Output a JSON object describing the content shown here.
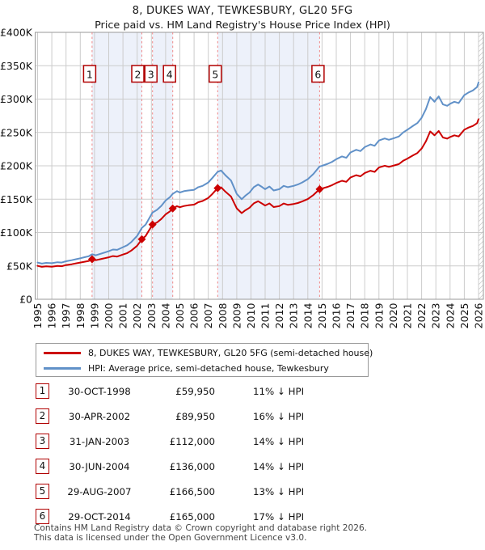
{
  "ui": {
    "title": "8, DUKES WAY, TEWKESBURY, GL20 5FG",
    "subtitle": "Price paid vs. HM Land Registry's House Price Index (HPI)",
    "legend": [
      {
        "label": "8, DUKES WAY, TEWKESBURY, GL20 5FG (semi-detached house)",
        "color": "#cc0000"
      },
      {
        "label": "HPI: Average price, semi-detached house, Tewkesbury",
        "color": "#6191c8"
      }
    ],
    "footer_line1": "Contains HM Land Registry data © Crown copyright and database right 2026.",
    "footer_line2": "This data is licensed under the Open Government Licence v3.0."
  },
  "transactions": [
    {
      "n": "1",
      "date": "30-OCT-1998",
      "price": "£59,950",
      "hpi_diff": "11% ↓ HPI",
      "year": 1998.83,
      "price_k": 59.95
    },
    {
      "n": "2",
      "date": "30-APR-2002",
      "price": "£89,950",
      "hpi_diff": "16% ↓ HPI",
      "year": 2002.33,
      "price_k": 89.95
    },
    {
      "n": "3",
      "date": "31-JAN-2003",
      "price": "£112,000",
      "hpi_diff": "14% ↓ HPI",
      "year": 2003.08,
      "price_k": 112
    },
    {
      "n": "4",
      "date": "30-JUN-2004",
      "price": "£136,000",
      "hpi_diff": "14% ↓ HPI",
      "year": 2004.5,
      "price_k": 136
    },
    {
      "n": "5",
      "date": "29-AUG-2007",
      "price": "£166,500",
      "hpi_diff": "13% ↓ HPI",
      "year": 2007.66,
      "price_k": 166.5
    },
    {
      "n": "6",
      "date": "29-OCT-2014",
      "price": "£165,000",
      "hpi_diff": "17% ↓ HPI",
      "year": 2014.83,
      "price_k": 165
    }
  ],
  "chart_data": {
    "type": "line",
    "title": "8, DUKES WAY, TEWKESBURY, GL20 5FG",
    "subtitle": "Price paid vs. HM Land Registry's House Price Index (HPI)",
    "xlabel": "",
    "ylabel": "",
    "x_range": [
      1995,
      2026
    ],
    "y_range_k": [
      0,
      400
    ],
    "y_tick_labels": [
      "£0",
      "£50K",
      "£100K",
      "£150K",
      "£200K",
      "£250K",
      "£300K",
      "£350K",
      "£400K"
    ],
    "x_ticks": [
      "1995",
      "1996",
      "1997",
      "1998",
      "1999",
      "2000",
      "2001",
      "2002",
      "2003",
      "2004",
      "2005",
      "2006",
      "2007",
      "2008",
      "2009",
      "2010",
      "2011",
      "2012",
      "2013",
      "2014",
      "2015",
      "2016",
      "2017",
      "2018",
      "2019",
      "2020",
      "2021",
      "2022",
      "2023",
      "2024",
      "2025",
      "2026"
    ],
    "grid": true,
    "legend_position": "below",
    "shaded_bands": [
      [
        1998.83,
        2002.33
      ],
      [
        2003.08,
        2004.5
      ],
      [
        2007.66,
        2014.83
      ]
    ],
    "colors": {
      "price_paid": "#cc0000",
      "hpi": "#6191c8",
      "band": "#edf1fa",
      "grid": "#cccccc",
      "border": "#999999",
      "sale_line": "#f08888",
      "badge_border": "#b00000"
    },
    "series": [
      {
        "name": "price_paid_gbp_k",
        "color": "#cc0000",
        "points": [
          [
            1995.0,
            50.1
          ],
          [
            1995.3,
            48.6
          ],
          [
            1995.6,
            49.4
          ],
          [
            1996.0,
            48.9
          ],
          [
            1996.4,
            50.1
          ],
          [
            1996.7,
            49.6
          ],
          [
            1997.0,
            51.3
          ],
          [
            1997.4,
            52.5
          ],
          [
            1997.7,
            53.8
          ],
          [
            1998.0,
            55.0
          ],
          [
            1998.3,
            56.2
          ],
          [
            1998.6,
            57.5
          ],
          [
            1998.83,
            59.95
          ],
          [
            1999.1,
            58.5
          ],
          [
            1999.4,
            60.0
          ],
          [
            1999.7,
            61.4
          ],
          [
            2000.0,
            62.9
          ],
          [
            2000.3,
            64.7
          ],
          [
            2000.6,
            64.0
          ],
          [
            2001.0,
            67.0
          ],
          [
            2001.3,
            69.2
          ],
          [
            2001.6,
            73.1
          ],
          [
            2002.0,
            80.2
          ],
          [
            2002.33,
            89.95
          ],
          [
            2002.6,
            94.9
          ],
          [
            2003.08,
            112.0
          ],
          [
            2003.4,
            115.2
          ],
          [
            2003.7,
            120.4
          ],
          [
            2004.0,
            127.3
          ],
          [
            2004.3,
            131.6
          ],
          [
            2004.5,
            136.0
          ],
          [
            2004.8,
            139.5
          ],
          [
            2005.0,
            137.9
          ],
          [
            2005.3,
            139.7
          ],
          [
            2005.6,
            140.8
          ],
          [
            2006.0,
            141.8
          ],
          [
            2006.3,
            145.4
          ],
          [
            2006.6,
            147.3
          ],
          [
            2007.0,
            151.9
          ],
          [
            2007.3,
            158.1
          ],
          [
            2007.66,
            166.5
          ],
          [
            2007.9,
            167.7
          ],
          [
            2008.2,
            161.3
          ],
          [
            2008.6,
            153.9
          ],
          [
            2009.0,
            136.3
          ],
          [
            2009.35,
            129.1
          ],
          [
            2009.6,
            133.2
          ],
          [
            2009.9,
            137.2
          ],
          [
            2010.2,
            143.8
          ],
          [
            2010.5,
            146.9
          ],
          [
            2010.8,
            143.2
          ],
          [
            2011.0,
            140.5
          ],
          [
            2011.3,
            143.6
          ],
          [
            2011.6,
            138.2
          ],
          [
            2012.0,
            139.6
          ],
          [
            2012.3,
            143.5
          ],
          [
            2012.6,
            141.5
          ],
          [
            2013.0,
            142.8
          ],
          [
            2013.3,
            144.2
          ],
          [
            2013.6,
            146.5
          ],
          [
            2014.0,
            150.2
          ],
          [
            2014.4,
            156.5
          ],
          [
            2014.83,
            165.0
          ],
          [
            2015.0,
            166.0
          ],
          [
            2015.4,
            168.5
          ],
          [
            2015.7,
            171.0
          ],
          [
            2016.0,
            174.3
          ],
          [
            2016.4,
            177.6
          ],
          [
            2016.7,
            176.0
          ],
          [
            2017.0,
            182.6
          ],
          [
            2017.4,
            185.9
          ],
          [
            2017.7,
            184.3
          ],
          [
            2018.0,
            189.2
          ],
          [
            2018.4,
            192.6
          ],
          [
            2018.7,
            190.9
          ],
          [
            2019.0,
            197.5
          ],
          [
            2019.4,
            200.1
          ],
          [
            2019.7,
            198.4
          ],
          [
            2020.0,
            200.1
          ],
          [
            2020.4,
            202.5
          ],
          [
            2020.7,
            207.5
          ],
          [
            2021.0,
            210.8
          ],
          [
            2021.4,
            215.8
          ],
          [
            2021.7,
            219.1
          ],
          [
            2022.0,
            225.8
          ],
          [
            2022.3,
            236.6
          ],
          [
            2022.6,
            251.5
          ],
          [
            2022.9,
            245.7
          ],
          [
            2023.2,
            252.3
          ],
          [
            2023.5,
            242.4
          ],
          [
            2023.8,
            240.7
          ],
          [
            2024.0,
            243.2
          ],
          [
            2024.3,
            245.7
          ],
          [
            2024.6,
            244.0
          ],
          [
            2025.0,
            254.0
          ],
          [
            2025.3,
            257.3
          ],
          [
            2025.6,
            259.8
          ],
          [
            2025.9,
            263.9
          ],
          [
            2026.0,
            269.8
          ]
        ]
      },
      {
        "name": "hpi_avg_semi_detached_tewkesbury_gbp_k",
        "color": "#6191c8",
        "points": [
          [
            1995.0,
            55.0
          ],
          [
            1995.3,
            53.5
          ],
          [
            1995.6,
            54.5
          ],
          [
            1996.0,
            54.0
          ],
          [
            1996.4,
            55.5
          ],
          [
            1996.7,
            55.0
          ],
          [
            1997.0,
            57.0
          ],
          [
            1997.4,
            58.5
          ],
          [
            1997.7,
            60.0
          ],
          [
            1998.0,
            61.5
          ],
          [
            1998.3,
            63.0
          ],
          [
            1998.6,
            64.5
          ],
          [
            1998.83,
            67.4
          ],
          [
            1999.1,
            66.0
          ],
          [
            1999.4,
            68.0
          ],
          [
            1999.7,
            70.0
          ],
          [
            2000.0,
            72.0
          ],
          [
            2000.3,
            74.5
          ],
          [
            2000.6,
            74.0
          ],
          [
            2001.0,
            78.0
          ],
          [
            2001.3,
            81.0
          ],
          [
            2001.6,
            86.0
          ],
          [
            2002.0,
            95.0
          ],
          [
            2002.33,
            107.0
          ],
          [
            2002.6,
            112.0
          ],
          [
            2003.08,
            130.0
          ],
          [
            2003.4,
            134.0
          ],
          [
            2003.7,
            140.0
          ],
          [
            2004.0,
            148.0
          ],
          [
            2004.3,
            153.0
          ],
          [
            2004.5,
            158.0
          ],
          [
            2004.8,
            162.0
          ],
          [
            2005.0,
            160.0
          ],
          [
            2005.3,
            162.0
          ],
          [
            2005.6,
            163.0
          ],
          [
            2006.0,
            164.0
          ],
          [
            2006.3,
            168.0
          ],
          [
            2006.6,
            170.0
          ],
          [
            2007.0,
            175.0
          ],
          [
            2007.3,
            182.0
          ],
          [
            2007.66,
            191.0
          ],
          [
            2007.9,
            193.0
          ],
          [
            2008.2,
            186.0
          ],
          [
            2008.6,
            178.0
          ],
          [
            2009.0,
            158.0
          ],
          [
            2009.35,
            150.0
          ],
          [
            2009.6,
            155.0
          ],
          [
            2009.9,
            160.0
          ],
          [
            2010.2,
            168.0
          ],
          [
            2010.5,
            172.0
          ],
          [
            2010.8,
            168.0
          ],
          [
            2011.0,
            165.0
          ],
          [
            2011.3,
            169.0
          ],
          [
            2011.6,
            163.0
          ],
          [
            2012.0,
            165.0
          ],
          [
            2012.3,
            170.0
          ],
          [
            2012.6,
            168.0
          ],
          [
            2013.0,
            170.0
          ],
          [
            2013.3,
            172.0
          ],
          [
            2013.6,
            175.0
          ],
          [
            2014.0,
            180.0
          ],
          [
            2014.4,
            188.0
          ],
          [
            2014.83,
            199.0
          ],
          [
            2015.0,
            200.0
          ],
          [
            2015.4,
            203.0
          ],
          [
            2015.7,
            206.0
          ],
          [
            2016.0,
            210.0
          ],
          [
            2016.4,
            214.0
          ],
          [
            2016.7,
            212.0
          ],
          [
            2017.0,
            220.0
          ],
          [
            2017.4,
            224.0
          ],
          [
            2017.7,
            222.0
          ],
          [
            2018.0,
            228.0
          ],
          [
            2018.4,
            232.0
          ],
          [
            2018.7,
            230.0
          ],
          [
            2019.0,
            238.0
          ],
          [
            2019.4,
            241.0
          ],
          [
            2019.7,
            239.0
          ],
          [
            2020.0,
            241.0
          ],
          [
            2020.4,
            244.0
          ],
          [
            2020.7,
            250.0
          ],
          [
            2021.0,
            254.0
          ],
          [
            2021.4,
            260.0
          ],
          [
            2021.7,
            264.0
          ],
          [
            2022.0,
            272.0
          ],
          [
            2022.3,
            285.0
          ],
          [
            2022.6,
            303.0
          ],
          [
            2022.9,
            296.0
          ],
          [
            2023.2,
            304.0
          ],
          [
            2023.5,
            292.0
          ],
          [
            2023.8,
            290.0
          ],
          [
            2024.0,
            293.0
          ],
          [
            2024.3,
            296.0
          ],
          [
            2024.6,
            294.0
          ],
          [
            2025.0,
            306.0
          ],
          [
            2025.3,
            310.0
          ],
          [
            2025.6,
            313.0
          ],
          [
            2025.9,
            318.0
          ],
          [
            2026.0,
            325.0
          ]
        ]
      }
    ]
  }
}
